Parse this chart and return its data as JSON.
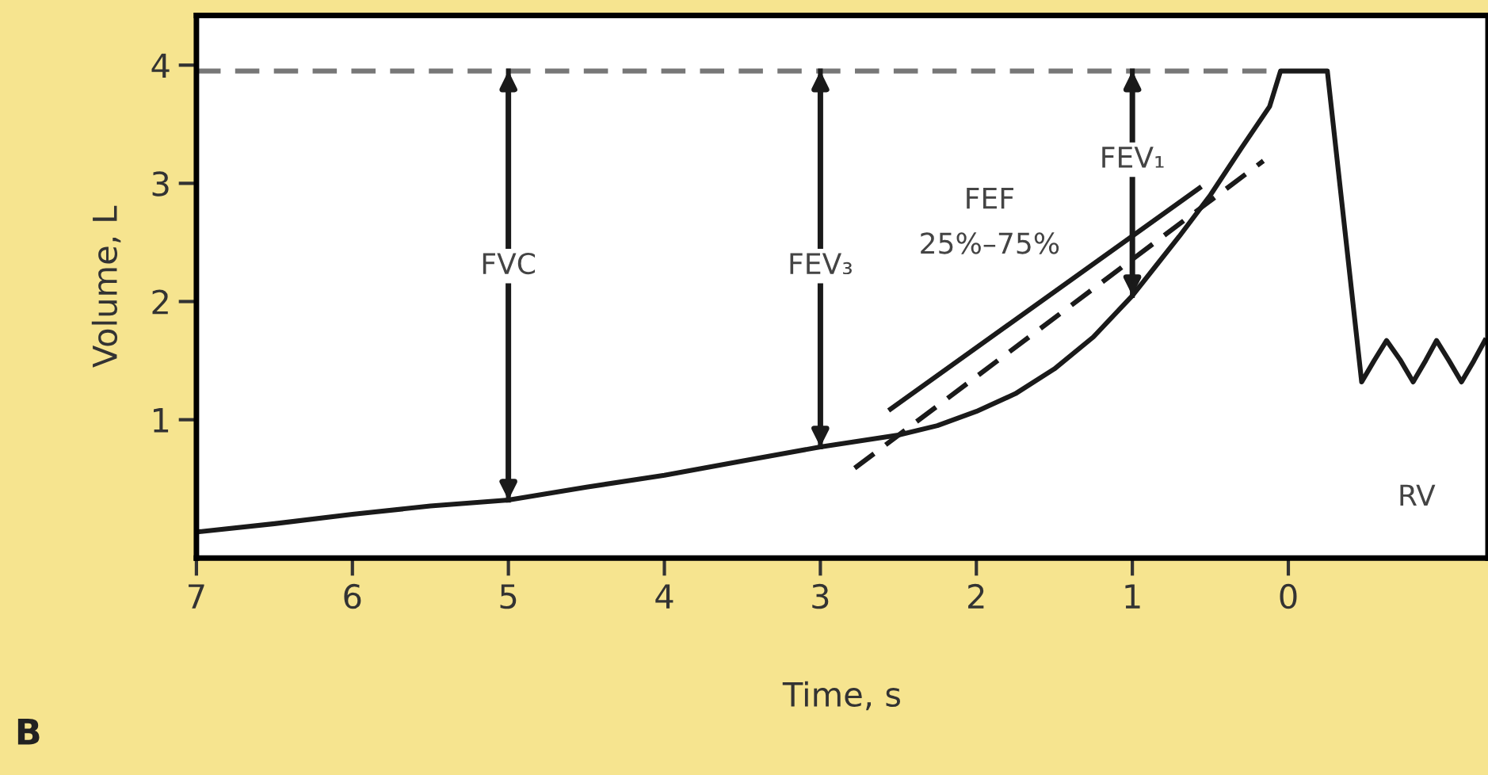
{
  "chart_data": {
    "type": "line",
    "xlabel": "Time, s",
    "ylabel": "Volume, L",
    "xlim": [
      7,
      -1.28
    ],
    "ylim": [
      -0.17,
      4.42
    ],
    "xticks": [
      7,
      6,
      5,
      4,
      3,
      2,
      1,
      0
    ],
    "yticks": [
      1,
      2,
      3,
      4
    ],
    "grid": false,
    "legend": false,
    "marker": "none",
    "line_style": "solid",
    "series": [
      {
        "color": "#1a1a1a",
        "x": [
          7,
          6.5,
          6,
          5.5,
          5,
          4.5,
          4,
          3.5,
          3,
          2.5,
          2.25,
          2,
          1.75,
          1.5,
          1.25,
          1,
          0.85,
          0.7,
          0.5,
          0.3,
          0.12,
          0.05,
          -0.25,
          -0.47,
          -0.55,
          -0.63,
          -0.72,
          -0.8,
          -0.88,
          -0.95,
          -1.03,
          -1.11,
          -1.19,
          -1.26
        ],
        "values": [
          0.05,
          0.12,
          0.2,
          0.27,
          0.32,
          0.43,
          0.53,
          0.65,
          0.77,
          0.87,
          0.95,
          1.07,
          1.22,
          1.43,
          1.7,
          2.05,
          2.3,
          2.55,
          2.9,
          3.3,
          3.65,
          3.95,
          3.95,
          1.32,
          1.5,
          1.67,
          1.5,
          1.32,
          1.5,
          1.67,
          1.5,
          1.32,
          1.5,
          1.67
        ]
      },
      {
        "color": "#1a1a1a",
        "x": [
          2.55,
          0.57
        ],
        "values": [
          1.09,
          2.96
        ]
      },
      {
        "color": "#1a1a1a",
        "x": [
          2.78,
          0.16
        ],
        "values": [
          0.59,
          3.19
        ],
        "line_style": "dashed"
      },
      {
        "color": "#777777",
        "x": [
          7,
          0.05
        ],
        "values": [
          3.95,
          3.95
        ],
        "line_style": "dashed"
      },
      {
        "color": "#1a1a1a",
        "x": [
          5,
          5
        ],
        "values": [
          0.32,
          3.95
        ]
      },
      {
        "color": "#1a1a1a",
        "x": [
          3,
          3
        ],
        "values": [
          0.77,
          3.95
        ]
      },
      {
        "color": "#1a1a1a",
        "x": [
          1,
          1
        ],
        "values": [
          2.05,
          3.95
        ]
      }
    ],
    "annotations": [
      {
        "text": "FVC",
        "x": 5,
        "y": 2.3
      },
      {
        "text": "FEV₃",
        "x": 3,
        "y": 2.3
      },
      {
        "text": "FEV₁",
        "x": 1,
        "y": 3.2
      },
      "FEF\n25%–75%",
      "RV",
      "B"
    ]
  }
}
